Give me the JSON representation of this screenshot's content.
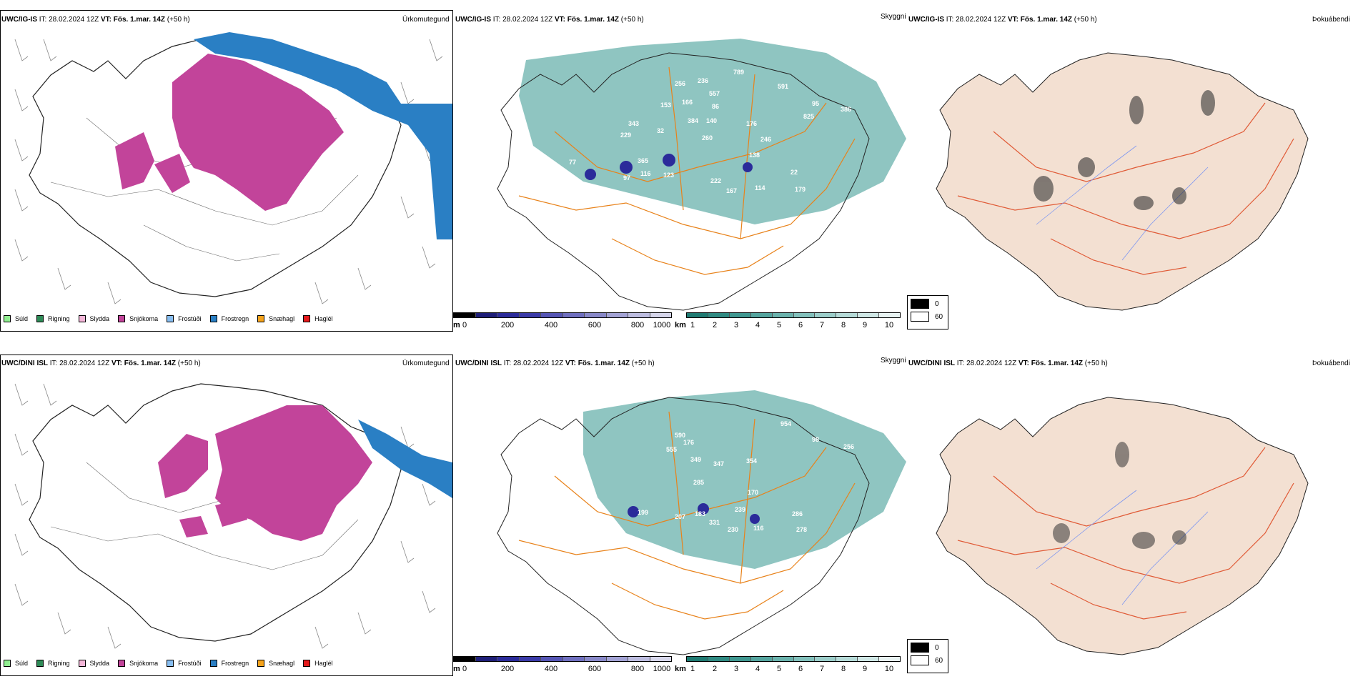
{
  "legend_precip": [
    {
      "label": "Súld",
      "color": "#90ee90"
    },
    {
      "label": "Rigning",
      "color": "#2e8b57"
    },
    {
      "label": "Slydda",
      "color": "#f4b6d8"
    },
    {
      "label": "Snjókoma",
      "color": "#c2449a"
    },
    {
      "label": "Frostúði",
      "color": "#87bdf0"
    },
    {
      "label": "Frostregn",
      "color": "#2a7fc4"
    },
    {
      "label": "Snæhagl",
      "color": "#f5a21b"
    },
    {
      "label": "Haglél",
      "color": "#e41a1c"
    }
  ],
  "cloud_base_bar": {
    "unit": "m",
    "ticks": [
      "0",
      "200",
      "400",
      "600",
      "800",
      "1000"
    ],
    "colors": [
      "#000000",
      "#1e1e78",
      "#2b2b9a",
      "#3a3aa8",
      "#5555b4",
      "#6f6fbf",
      "#8888c8",
      "#a2a2d4",
      "#bcbcdf",
      "#d6d6ea"
    ]
  },
  "visibility_bar": {
    "unit": "km",
    "ticks": [
      "1",
      "2",
      "3",
      "4",
      "5",
      "6",
      "7",
      "8",
      "9",
      "10"
    ],
    "colors": [
      "#1f7a72",
      "#2f8a82",
      "#3f9790",
      "#54a49e",
      "#6ab2ac",
      "#82c0bb",
      "#9bcdc9",
      "#b5dad7",
      "#cfe7e5",
      "#e8f3f2"
    ]
  },
  "fog_legend": [
    {
      "label": "0",
      "color": "#000000"
    },
    {
      "label": "60",
      "color": "#ffffff"
    }
  ],
  "rows": [
    {
      "model": "UWC/IG-IS",
      "it_label": "IT:",
      "it": "28.02.2024 12Z",
      "vt_label": "VT:",
      "vt": "Fös. 1.mar. 14Z",
      "lead": "(+50 h)",
      "titles": [
        "Úrkomutegund",
        "Skyggni",
        "Þokuábendi"
      ],
      "cloud_labels": [
        "256",
        "236",
        "557",
        "789",
        "591",
        "153",
        "166",
        "86",
        "343",
        "32",
        "384",
        "140",
        "95",
        "825",
        "386",
        "229",
        "176",
        "260",
        "246",
        "138",
        "77",
        "365",
        "116",
        "123",
        "22",
        "222",
        "167",
        "114",
        "179",
        "97"
      ]
    },
    {
      "model": "UWC/DINI ISL",
      "it_label": "IT:",
      "it": "28.02.2024 12Z",
      "vt_label": "VT:",
      "vt": "Fös. 1.mar. 14Z",
      "lead": "(+50 h)",
      "titles": [
        "Úrkomutegund",
        "Skyggni",
        "Þokuábendi"
      ],
      "cloud_labels": [
        "590",
        "176",
        "555",
        "349",
        "347",
        "354",
        "954",
        "98",
        "256",
        "285",
        "170",
        "239",
        "286",
        "207",
        "183",
        "331",
        "230",
        "116",
        "278",
        "199"
      ]
    }
  ]
}
